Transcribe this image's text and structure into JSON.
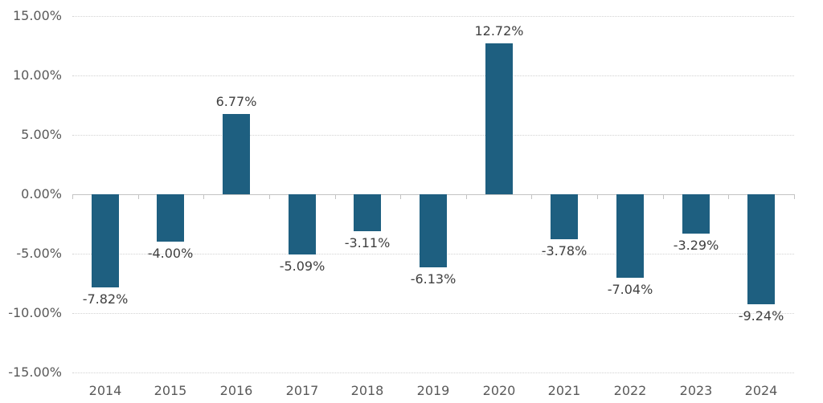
{
  "chart_data": {
    "type": "bar",
    "title": "",
    "xlabel": "",
    "ylabel": "",
    "categories": [
      "2014",
      "2015",
      "2016",
      "2017",
      "2018",
      "2019",
      "2020",
      "2021",
      "2022",
      "2023",
      "2024"
    ],
    "values": [
      -7.82,
      -4.0,
      6.77,
      -5.09,
      -3.11,
      -6.13,
      12.72,
      -3.78,
      -7.04,
      -3.29,
      -9.24
    ],
    "data_labels": [
      "-7.82%",
      "-4.00%",
      "6.77%",
      "-5.09%",
      "-3.11%",
      "-6.13%",
      "12.72%",
      "-3.78%",
      "-7.04%",
      "-3.29%",
      "-9.24%"
    ],
    "ylim": [
      -15,
      15
    ],
    "yticks": [
      15,
      10,
      5,
      0,
      -5,
      -10,
      -15
    ],
    "ytick_labels": [
      "15.00%",
      "10.00%",
      "5.00%",
      "0.00%",
      "-5.00%",
      "-10.00%",
      "-15.00%"
    ],
    "grid": true,
    "legend_position": "none",
    "colors": {
      "bar": "#1e5f80",
      "gridline": "#d2d2d2",
      "axis_line": "#c3c3c3",
      "axis_label": "#595959",
      "data_label": "#404040",
      "background": "#ffffff"
    }
  }
}
